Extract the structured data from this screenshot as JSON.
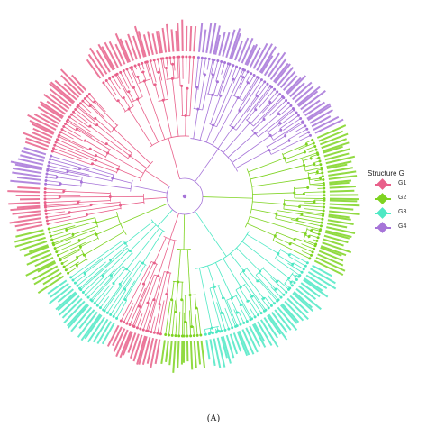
{
  "legend": {
    "title": "Structure G",
    "groups": [
      {
        "key": "G1",
        "label": "G1",
        "color": "#e8608a"
      },
      {
        "key": "G2",
        "label": "G2",
        "color": "#7ed321"
      },
      {
        "key": "G3",
        "label": "G3",
        "color": "#4ee8c4"
      },
      {
        "key": "G4",
        "label": "G4",
        "color": "#a674d8"
      }
    ]
  },
  "caption": "(A)",
  "tree": {
    "layout": "circular",
    "colors": {
      "G1": "#e8608a",
      "G2": "#7ed321",
      "G3": "#4ee8c4",
      "G4": "#a674d8"
    },
    "clades": [
      {
        "group": "G1",
        "leaves": 30
      },
      {
        "group": "G4",
        "leaves": 44
      },
      {
        "group": "G2",
        "leaves": 38
      },
      {
        "group": "G3",
        "leaves": 40
      },
      {
        "group": "G2",
        "leaves": 12
      },
      {
        "group": "G1",
        "leaves": 14
      },
      {
        "group": "G3",
        "leaves": 20
      },
      {
        "group": "G2",
        "leaves": 16
      },
      {
        "group": "G1",
        "leaves": 12
      },
      {
        "group": "G4",
        "leaves": 10
      },
      {
        "group": "G1",
        "leaves": 22
      }
    ]
  }
}
